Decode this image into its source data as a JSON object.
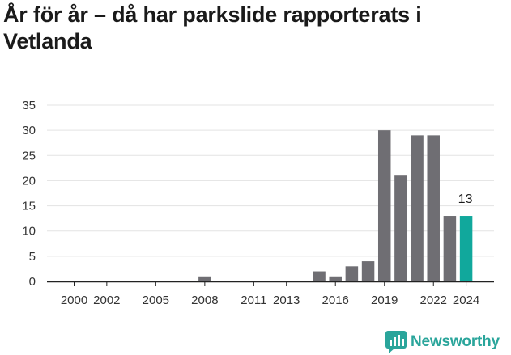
{
  "chart_data": {
    "type": "bar",
    "title": "År för år – då har parkslide rapporterats i Vetlanda",
    "xlabel": "",
    "ylabel": "",
    "x": [
      2000,
      2001,
      2002,
      2003,
      2004,
      2005,
      2006,
      2007,
      2008,
      2009,
      2010,
      2011,
      2012,
      2013,
      2014,
      2015,
      2016,
      2017,
      2018,
      2019,
      2020,
      2021,
      2022,
      2023,
      2024
    ],
    "values": [
      0,
      0,
      0,
      0,
      0,
      0,
      0,
      0,
      1,
      0,
      0,
      0,
      0,
      0,
      0,
      2,
      1,
      3,
      4,
      30,
      21,
      29,
      29,
      13,
      13
    ],
    "xticks": [
      "2000",
      "2002",
      "2005",
      "2008",
      "2011",
      "2013",
      "2016",
      "2019",
      "2022",
      "2024"
    ],
    "ylim": [
      0,
      35
    ],
    "yticks": [
      0,
      5,
      10,
      15,
      20,
      25,
      30,
      35
    ],
    "highlight_index": 24,
    "highlight_label": "13",
    "grid": true,
    "colors": {
      "bar": "#6f6e73",
      "highlight": "#11a89c",
      "grid": "#e3e3e3",
      "axis": "#222222"
    }
  },
  "brand": {
    "name": "Newsworthy",
    "icon": "bar-chart-icon",
    "color": "#2aa59b"
  }
}
